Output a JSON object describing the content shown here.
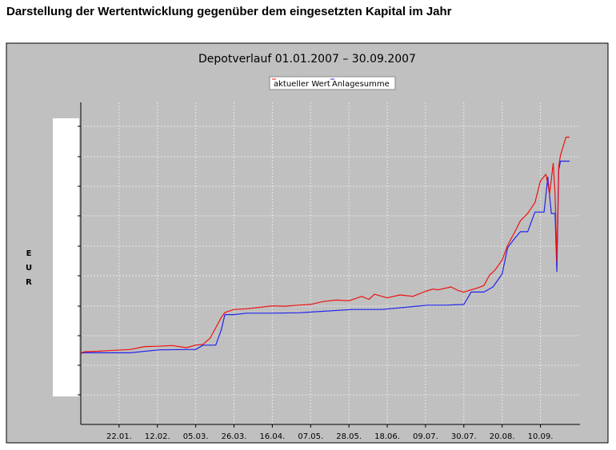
{
  "page": {
    "heading": "Darstellung der Wertentwicklung gegenüber dem eingesetzten Kapital im Jahr"
  },
  "chart_data": {
    "type": "line",
    "title": "Depotverlauf 01.01.2007 – 30.09.2007",
    "ylabel": "EUR",
    "xlabel": "",
    "x_ticks": [
      "22.01.",
      "12.02.",
      "05.03.",
      "26.03.",
      "16.04.",
      "07.05.",
      "28.05.",
      "18.06.",
      "09.07.",
      "30.07.",
      "20.08.",
      "10.09."
    ],
    "x_range": [
      "01.01.2007",
      "30.09.2007"
    ],
    "grid": true,
    "legend_position": "top-center",
    "colors": {
      "background": "#c0c0c0",
      "series1": "#ee1111",
      "series2": "#2222ee",
      "grid": "#e8e8e8"
    },
    "series": [
      {
        "name": "aktueller Wert",
        "x": [
          "01.01.",
          "03.01.",
          "10.01.",
          "20.01.",
          "28.01.",
          "05.02.",
          "12.02.",
          "20.02.",
          "28.02.",
          "05.03.",
          "09.03.",
          "13.03.",
          "16.03.",
          "19.03.",
          "21.03.",
          "26.03.",
          "02.04.",
          "09.04.",
          "16.04.",
          "23.04.",
          "30.04.",
          "07.05.",
          "14.05.",
          "21.05.",
          "28.05.",
          "04.06.",
          "08.06.",
          "11.06.",
          "18.06.",
          "25.06.",
          "02.07.",
          "09.07.",
          "13.07.",
          "16.07.",
          "23.07.",
          "27.07.",
          "30.07.",
          "03.08.",
          "07.08.",
          "10.08.",
          "13.08.",
          "16.08.",
          "20.08.",
          "23.08.",
          "27.08.",
          "30.08.",
          "03.09.",
          "07.09.",
          "10.09.",
          "13.09.",
          "15.09.",
          "17.09.",
          "18.09.",
          "19.09.",
          "20.09.",
          "21.09.",
          "24.09.",
          "26.09."
        ],
        "values": [
          4.8,
          5.0,
          5.05,
          5.2,
          5.3,
          5.7,
          5.75,
          5.85,
          5.55,
          5.9,
          6.0,
          6.9,
          8.3,
          9.7,
          10.4,
          10.8,
          10.9,
          11.1,
          11.3,
          11.25,
          11.4,
          11.5,
          11.9,
          12.1,
          12.0,
          12.6,
          12.2,
          12.9,
          12.4,
          12.8,
          12.6,
          13.3,
          13.6,
          13.5,
          13.9,
          13.4,
          13.2,
          13.5,
          13.8,
          14.1,
          15.5,
          16.2,
          17.6,
          19.6,
          21.5,
          23.0,
          24.0,
          25.5,
          28.5,
          29.4,
          26.7,
          30.9,
          26.8,
          17.4,
          30.5,
          32.0,
          34.5,
          34.5
        ]
      },
      {
        "name": "Anlagesumme",
        "x": [
          "01.01.",
          "03.01.",
          "28.01.",
          "13.02.",
          "28.02.",
          "05.03.",
          "09.03.",
          "16.03.",
          "19.03.",
          "21.03.",
          "26.03.",
          "02.04.",
          "16.04.",
          "01.05.",
          "30.05.",
          "15.06.",
          "30.06.",
          "10.07.",
          "20.07.",
          "30.07.",
          "03.08.",
          "10.08.",
          "15.08.",
          "20.08.",
          "23.08.",
          "27.08.",
          "30.08.",
          "03.09.",
          "07.09.",
          "12.09.",
          "14.09.",
          "16.09.",
          "18.09.",
          "19.09.",
          "20.09.",
          "21.09.",
          "24.09.",
          "26.09."
        ],
        "values": [
          4.8,
          4.85,
          4.85,
          5.25,
          5.3,
          5.3,
          5.9,
          5.9,
          8.0,
          10.1,
          10.1,
          10.3,
          10.3,
          10.35,
          10.8,
          10.8,
          11.15,
          11.4,
          11.4,
          11.5,
          13.2,
          13.2,
          13.9,
          15.7,
          19.3,
          20.6,
          21.5,
          21.5,
          24.2,
          24.2,
          29.0,
          24.0,
          24.0,
          16.0,
          30.0,
          31.2,
          31.2,
          31.2
        ]
      }
    ]
  }
}
